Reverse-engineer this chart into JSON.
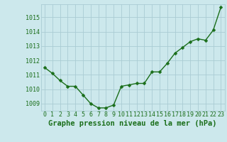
{
  "x": [
    0,
    1,
    2,
    3,
    4,
    5,
    6,
    7,
    8,
    9,
    10,
    11,
    12,
    13,
    14,
    15,
    16,
    17,
    18,
    19,
    20,
    21,
    22,
    23
  ],
  "y": [
    1011.5,
    1011.1,
    1010.6,
    1010.2,
    1010.2,
    1009.6,
    1009.0,
    1008.7,
    1008.7,
    1008.9,
    1010.2,
    1010.3,
    1010.4,
    1010.4,
    1011.2,
    1011.2,
    1011.8,
    1012.5,
    1012.9,
    1013.3,
    1013.5,
    1013.4,
    1014.1,
    1015.7
  ],
  "line_color": "#1a6e1a",
  "marker_color": "#1a6e1a",
  "bg_color": "#cce8ec",
  "grid_color": "#aaccd4",
  "xlabel": "Graphe pression niveau de la mer (hPa)",
  "xlabel_color": "#1a6e1a",
  "tick_color": "#1a6e1a",
  "ylim": [
    1008.5,
    1015.9
  ],
  "yticks": [
    1009,
    1010,
    1011,
    1012,
    1013,
    1014,
    1015
  ],
  "xticks": [
    0,
    1,
    2,
    3,
    4,
    5,
    6,
    7,
    8,
    9,
    10,
    11,
    12,
    13,
    14,
    15,
    16,
    17,
    18,
    19,
    20,
    21,
    22,
    23
  ],
  "xlabel_fontsize": 7.5,
  "tick_fontsize": 6.0,
  "linewidth": 1.0,
  "markersize": 2.5
}
